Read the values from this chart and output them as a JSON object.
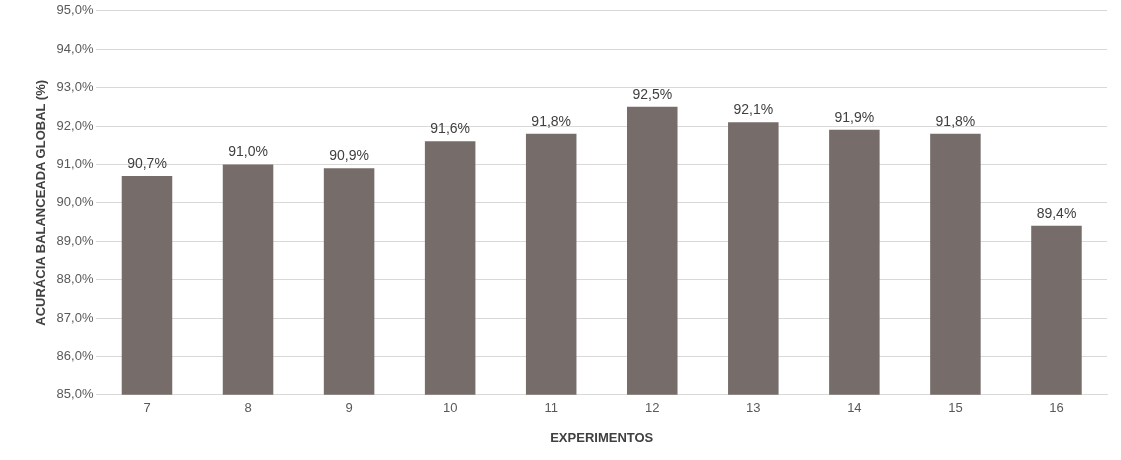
{
  "chart_data": {
    "type": "bar",
    "xlabel": "EXPERIMENTOS",
    "ylabel": "ACURÁCIA BALANCEADA GLOBAL (%)",
    "categories": [
      "7",
      "8",
      "9",
      "10",
      "11",
      "12",
      "13",
      "14",
      "15",
      "16"
    ],
    "values": [
      90.7,
      91.0,
      90.9,
      91.6,
      91.8,
      92.5,
      92.1,
      91.9,
      91.8,
      89.4
    ],
    "value_labels": [
      "90,7%",
      "91,0%",
      "90,9%",
      "91,6%",
      "91,8%",
      "92,5%",
      "92,1%",
      "91,9%",
      "91,8%",
      "89,4%"
    ],
    "color": "#766d6b",
    "ylim": [
      85,
      95
    ],
    "yticks": [
      {
        "value": 85,
        "label": "85,0%"
      },
      {
        "value": 86,
        "label": "86,0%"
      },
      {
        "value": 87,
        "label": "87,0%"
      },
      {
        "value": 88,
        "label": "88,0%"
      },
      {
        "value": 89,
        "label": "89,0%"
      },
      {
        "value": 90,
        "label": "90,0%"
      },
      {
        "value": 91,
        "label": "91,0%"
      },
      {
        "value": 92,
        "label": "92,0%"
      },
      {
        "value": 93,
        "label": "93,0%"
      },
      {
        "value": 94,
        "label": "94,0%"
      },
      {
        "value": 95,
        "label": "95,0%"
      }
    ],
    "grid": "y",
    "legend": false
  }
}
